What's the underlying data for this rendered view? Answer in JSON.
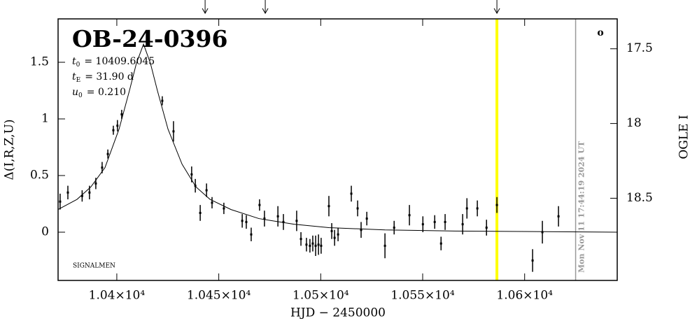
{
  "chart_data": {
    "type": "scatter",
    "title": "OB-24-0396",
    "parameters": [
      {
        "symbol": "t",
        "sub": "0",
        "text": "= 10409.6045"
      },
      {
        "symbol": "t",
        "sub": "E",
        "text": "= 31.90 d"
      },
      {
        "symbol": "u",
        "sub": "0",
        "text": "= 0.210"
      }
    ],
    "x_label": "HJD − 2450000",
    "y_label": "Δ(I,R,Z,U)",
    "y2_label": "OGLE I",
    "xlim": [
      10371.2,
      10645.4
    ],
    "ylim": [
      -0.426,
      1.883
    ],
    "y2lim": [
      19.05,
      17.3
    ],
    "xticks": [
      {
        "value": 10400,
        "label": "1.04×10⁴"
      },
      {
        "value": 10450,
        "label": "1.045×10⁴"
      },
      {
        "value": 10500,
        "label": "1.05×10⁴"
      },
      {
        "value": 10550,
        "label": "1.055×10⁴"
      },
      {
        "value": 10600,
        "label": "1.06×10⁴"
      }
    ],
    "yticks": [
      0,
      0.5,
      1,
      1.5
    ],
    "y2ticks": [
      17.5,
      18,
      18.5
    ],
    "series": [
      {
        "color": "#000000",
        "x": [
          10372.2,
          10376,
          10383,
          10386.6,
          10389.7,
          10392.8,
          10395.6,
          10398.3,
          10400.3,
          10402.4,
          10422.3,
          10427.8,
          10436.7,
          10438.5,
          10440.9,
          10444,
          10446.7,
          10452.5,
          10461.5,
          10463.5,
          10465.9,
          10470,
          10472.4,
          10479,
          10481.7,
          10488.2,
          10490.3,
          10493,
          10494.7,
          10496.1,
          10497.5,
          10498.9,
          10500.2,
          10504,
          10505.4,
          10506.8,
          10508.5,
          10515,
          10518.1,
          10519.8,
          10522.6,
          10531.5,
          10536,
          10543.5,
          10550.1,
          10555.9,
          10559,
          10561,
          10569.6,
          10571.7,
          10576.8,
          10581.3,
          10586.4,
          10603.9,
          10608.7,
          10616.6
        ],
        "values": [
          0.27,
          0.35,
          0.32,
          0.35,
          0.43,
          0.57,
          0.69,
          0.9,
          0.94,
          1.04,
          1.16,
          0.89,
          0.51,
          0.41,
          0.17,
          0.37,
          0.26,
          0.21,
          0.1,
          0.09,
          -0.02,
          0.24,
          0.12,
          0.14,
          0.09,
          0.1,
          -0.06,
          -0.11,
          -0.12,
          -0.1,
          -0.12,
          -0.11,
          -0.12,
          0.23,
          0.01,
          -0.05,
          -0.02,
          0.34,
          0.21,
          0.02,
          0.12,
          -0.12,
          0.04,
          0.15,
          0.07,
          0.09,
          -0.1,
          0.09,
          0.07,
          0.21,
          0.21,
          0.04,
          0.24,
          -0.25,
          0,
          0.14
        ],
        "errors": [
          0.07,
          0.06,
          0.05,
          0.06,
          0.05,
          0.05,
          0.04,
          0.04,
          0.05,
          0.04,
          0.04,
          0.09,
          0.07,
          0.06,
          0.07,
          0.06,
          0.05,
          0.05,
          0.06,
          0.06,
          0.06,
          0.05,
          0.07,
          0.09,
          0.07,
          0.09,
          0.06,
          0.06,
          0.06,
          0.07,
          0.09,
          0.09,
          0.07,
          0.09,
          0.07,
          0.07,
          0.06,
          0.07,
          0.07,
          0.07,
          0.06,
          0.11,
          0.06,
          0.09,
          0.07,
          0.06,
          0.06,
          0.07,
          0.09,
          0.09,
          0.07,
          0.07,
          0.07,
          0.1,
          0.1,
          0.09
        ]
      },
      {
        "type": "line",
        "color": "#000000",
        "x": [
          10371.2,
          10380.5,
          10387.3,
          10394.2,
          10401.1,
          10406.2,
          10409.6,
          10413.1,
          10416.5,
          10419.9,
          10425.1,
          10432,
          10438.8,
          10445.7,
          10456,
          10469.7,
          10486.9,
          10504,
          10531.5,
          10565.8,
          10645.4
        ],
        "values": [
          0.2,
          0.29,
          0.4,
          0.57,
          0.91,
          1.25,
          1.49,
          1.66,
          1.49,
          1.25,
          0.91,
          0.6,
          0.4,
          0.29,
          0.2,
          0.12,
          0.07,
          0.04,
          0.02,
          0.01,
          0
        ]
      }
    ],
    "arrows": [
      10443.3,
      10472.8,
      10586.4
    ],
    "highlight": {
      "x": 10586.4,
      "color": "#ffff00"
    },
    "now_line": {
      "x": 10625,
      "color": "#999999",
      "label": "Mon Nov 11 17:44:19 2024 UT"
    },
    "credit": "SIGNALMEN",
    "corner_mark": "o"
  }
}
